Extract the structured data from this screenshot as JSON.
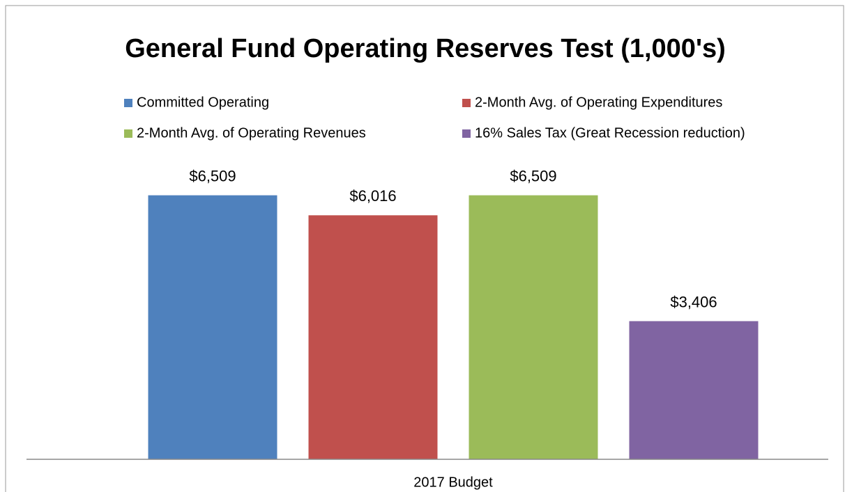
{
  "chart_data": {
    "type": "bar",
    "title": "General Fund Operating Reserves Test (1,000's)",
    "categories": [
      "2017 Budget"
    ],
    "series": [
      {
        "name": "Committed Operating",
        "color": "#4f81bd",
        "values": [
          6509
        ],
        "value_labels": [
          "$6,509"
        ]
      },
      {
        "name": "2-Month Avg. of Operating Expenditures",
        "color": "#c0504d",
        "values": [
          6016
        ],
        "value_labels": [
          "$6,016"
        ]
      },
      {
        "name": "2-Month Avg. of Operating Revenues",
        "color": "#9bbb59",
        "values": [
          6509
        ],
        "value_labels": [
          "$6,509"
        ]
      },
      {
        "name": "16% Sales Tax (Great Recession reduction)",
        "color": "#8064a2",
        "values": [
          3406
        ],
        "value_labels": [
          "$3,406"
        ]
      }
    ],
    "ylim": [
      0,
      7000
    ]
  }
}
